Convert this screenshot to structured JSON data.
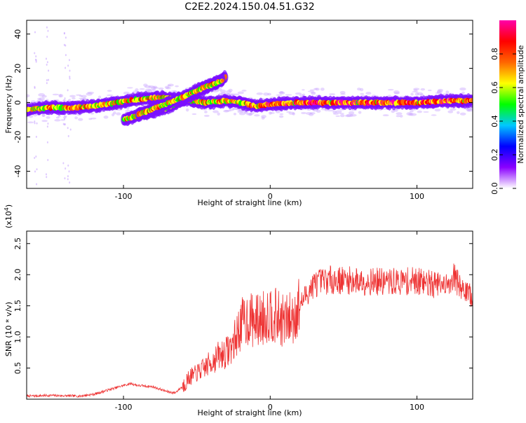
{
  "title": "C2E2.2024.150.04.51.G32",
  "chart_data": [
    {
      "type": "heatmap",
      "xlabel": "Height of straight line (km)",
      "ylabel": "Frequency (Hz)",
      "xlim": [
        -166,
        138
      ],
      "ylim": [
        -50,
        48
      ],
      "x_ticks": [
        -100,
        0,
        100
      ],
      "x_tick_labels": [
        "-100",
        "0",
        "100"
      ],
      "y_ticks": [
        -40,
        -20,
        0,
        20,
        40
      ],
      "y_tick_labels": [
        "-40",
        "-20",
        "0",
        "20",
        "40"
      ],
      "colorbar": {
        "label": "Normalized spectral amplitude",
        "range": [
          0,
          1
        ],
        "ticks": [
          0.0,
          0.2,
          0.4,
          0.6,
          0.8
        ],
        "tick_labels": [
          "0.0",
          "0.2",
          "0.4",
          "0.6",
          "0.8"
        ],
        "colors": [
          "#ffffff",
          "#8a00ff",
          "#0000ff",
          "#00c8ff",
          "#00ff00",
          "#ffff00",
          "#ff6600",
          "#ff0000",
          "#ff00aa"
        ]
      },
      "ridges": [
        {
          "x": [
            -166,
            -150,
            -135,
            -120,
            -105,
            -90,
            -75,
            -60,
            -45,
            -30,
            -20,
            -10,
            0,
            20,
            40,
            60,
            80,
            100,
            120,
            138
          ],
          "y": [
            -4,
            -3,
            -3,
            -2,
            0,
            2,
            3,
            2,
            0,
            1,
            0,
            -2,
            -1,
            0,
            0,
            0,
            0,
            0,
            1,
            1
          ]
        },
        {
          "x": [
            -100,
            -85,
            -70,
            -55,
            -40,
            -30
          ],
          "y": [
            -10,
            -6,
            -3,
            4,
            10,
            15
          ]
        },
        {
          "x": [
            -90,
            -75,
            -60,
            -45,
            -32
          ],
          "y": [
            -7,
            -2,
            3,
            9,
            13
          ]
        }
      ]
    },
    {
      "type": "line",
      "xlabel": "Height of straight line (km)",
      "ylabel": "SNR (10 * v/v)",
      "y_multiplier": "(x10",
      "y_multiplier_exp": "4",
      "y_multiplier_close": ")",
      "xlim": [
        -166,
        138
      ],
      "ylim": [
        0.0,
        2.7
      ],
      "x_ticks": [
        -100,
        0,
        100
      ],
      "x_tick_labels": [
        "-100",
        "0",
        "100"
      ],
      "y_ticks": [
        0.5,
        1.0,
        1.5,
        2.0,
        2.5
      ],
      "y_tick_labels": [
        "0.5",
        "1.0",
        "1.5",
        "2.0",
        "2.5"
      ],
      "color": "#ee3333",
      "series": [
        {
          "x": [
            -166,
            -150,
            -130,
            -120,
            -110,
            -100,
            -95,
            -90,
            -80,
            -70,
            -65,
            -60,
            -55,
            -50,
            -45,
            -40,
            -35,
            -30,
            -25,
            -20,
            -15,
            -10,
            -5,
            0,
            5,
            10,
            15,
            20,
            25,
            30,
            40,
            60,
            80,
            100,
            110,
            120,
            125,
            130,
            138
          ],
          "values": [
            0.05,
            0.06,
            0.05,
            0.08,
            0.15,
            0.22,
            0.25,
            0.22,
            0.2,
            0.12,
            0.1,
            0.2,
            0.35,
            0.42,
            0.5,
            0.6,
            0.7,
            0.75,
            0.9,
            1.2,
            1.3,
            1.25,
            1.3,
            1.4,
            1.3,
            1.25,
            1.3,
            1.5,
            1.7,
            1.85,
            1.92,
            1.9,
            1.88,
            1.9,
            1.85,
            1.8,
            2.0,
            1.75,
            1.65
          ]
        }
      ]
    }
  ]
}
